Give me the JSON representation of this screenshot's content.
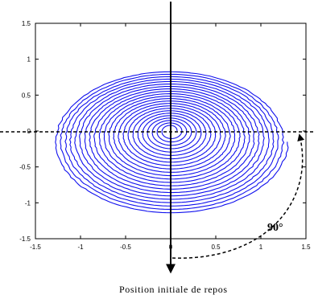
{
  "chart_data": {
    "type": "line",
    "xlim": [
      -1.5,
      1.5
    ],
    "ylim": [
      -1.5,
      1.5
    ],
    "x_ticks": [
      "-1.5",
      "-1",
      "-0.5",
      "0",
      "0.5",
      "1",
      "1.5"
    ],
    "y_ticks": [
      "1.5",
      "1",
      "0.5",
      "0",
      "-0.5",
      "-1",
      "-1.5"
    ],
    "series_color": "#1010ee",
    "spiral": {
      "inner_radius": 0.07,
      "outer_radius_x": 1.3,
      "outer_radius_y": 1.0,
      "center_offset_y": -0.15,
      "turns": 23
    },
    "annotation": {
      "angle_label": "90°",
      "caption": "Position initiale de repos",
      "rotation_arc_deg": 90
    },
    "grid": false
  }
}
